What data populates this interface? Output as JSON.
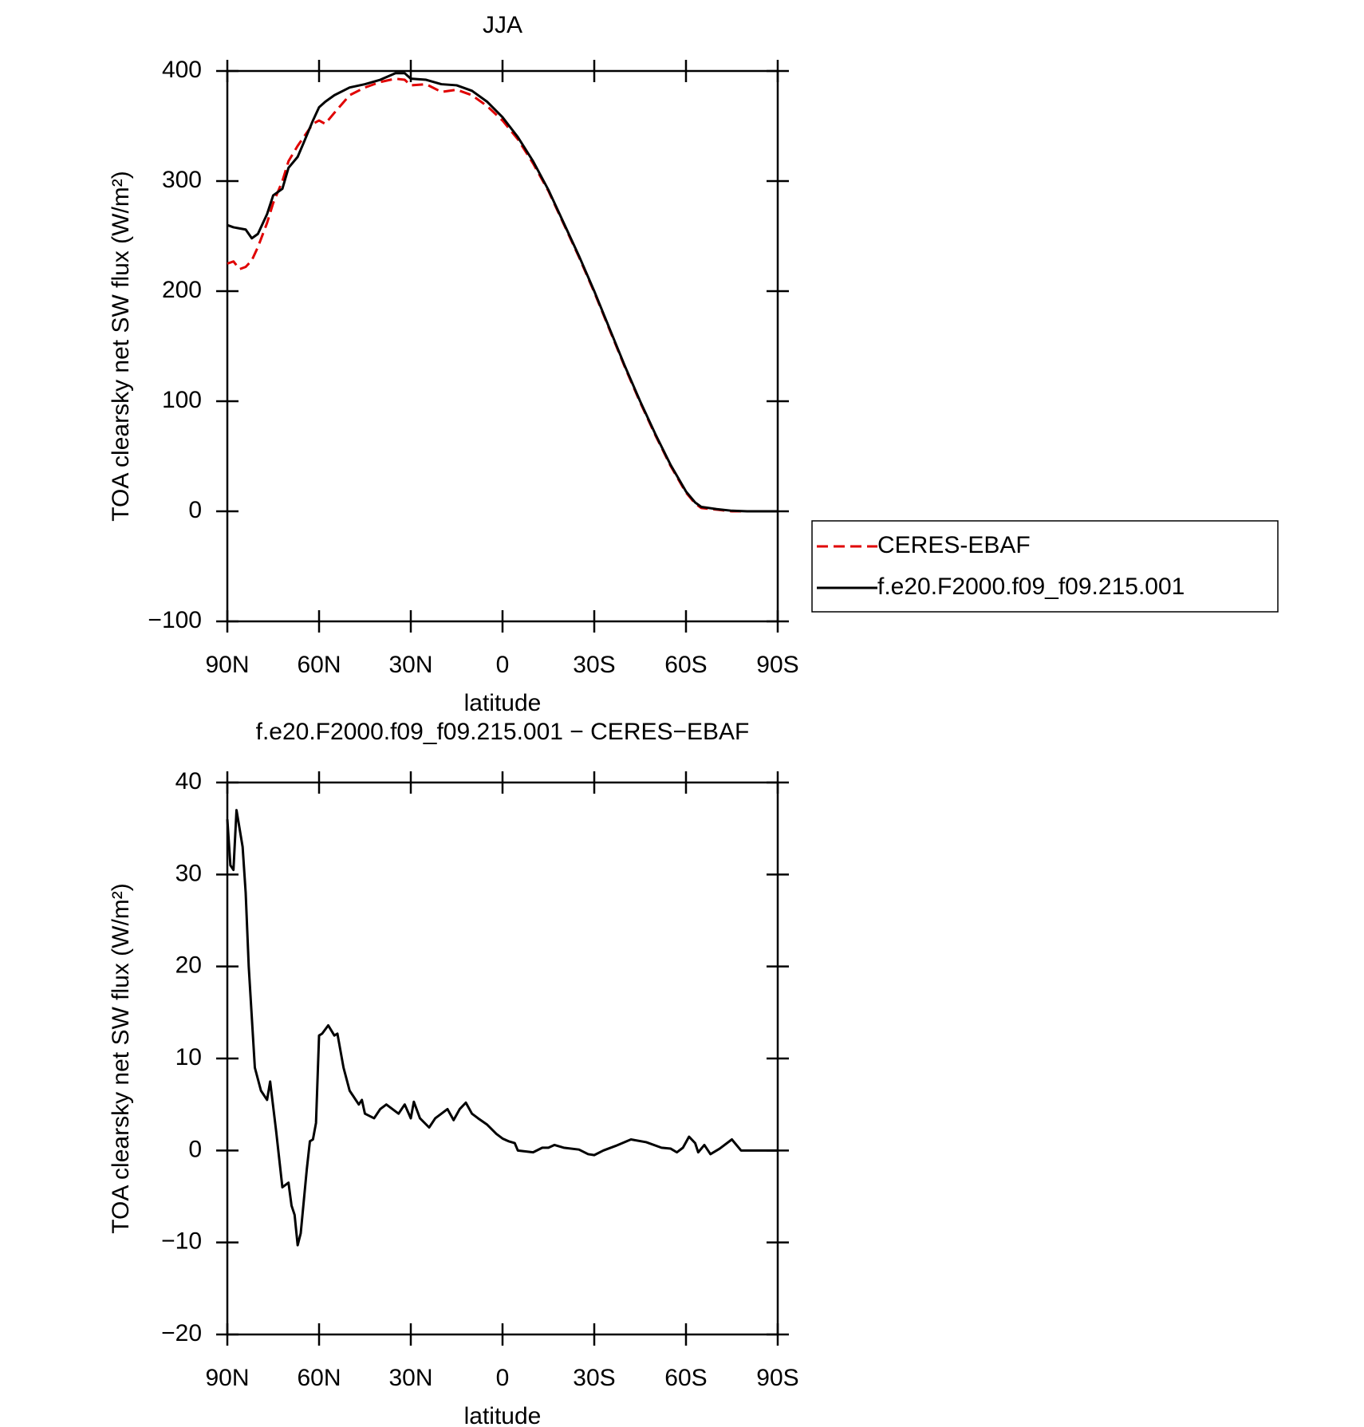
{
  "chart_data": [
    {
      "type": "line",
      "title": "JJA",
      "xlabel": "latitude",
      "ylabel": "TOA clearsky net SW flux (W/m²)",
      "xlim": [
        90,
        -90
      ],
      "xticks": [
        {
          "value": 90,
          "label": "90N"
        },
        {
          "value": 60,
          "label": "60N"
        },
        {
          "value": 30,
          "label": "30N"
        },
        0,
        {
          "value": -30,
          "label": "30S"
        },
        {
          "value": -60,
          "label": "60S"
        },
        {
          "value": -90,
          "label": "90S"
        }
      ],
      "ylim": [
        -100,
        400
      ],
      "yticks": [
        {
          "value": -100,
          "label": "−100"
        },
        0,
        100,
        200,
        300,
        400
      ],
      "legend": "right",
      "x": [
        90,
        88,
        86,
        84,
        82,
        80,
        77,
        75,
        72,
        70,
        67,
        65,
        62,
        60,
        58,
        55,
        50,
        45,
        40,
        35,
        32,
        30,
        25,
        20,
        15,
        10,
        5,
        0,
        -5,
        -10,
        -15,
        -20,
        -25,
        -30,
        -35,
        -40,
        -45,
        -50,
        -55,
        -60,
        -63,
        -65,
        -70,
        -75,
        -80,
        -85,
        -90
      ],
      "series": [
        {
          "name": "CERES-EBAF",
          "color": "#e00000",
          "dash": true,
          "values": [
            225,
            227,
            220,
            222,
            228,
            240,
            262,
            280,
            300,
            318,
            332,
            340,
            352,
            355,
            352,
            362,
            378,
            385,
            390,
            393,
            392,
            387,
            388,
            381,
            383,
            378,
            368,
            355,
            338,
            316,
            291,
            261,
            231,
            199,
            165,
            131,
            99,
            69,
            41,
            17,
            7,
            3,
            1.5,
            0,
            0,
            0,
            0
          ]
        },
        {
          "name": "f.e20.F2000.f09_f09.215.001",
          "color": "#000000",
          "dash": false,
          "values": [
            260,
            258,
            257,
            256,
            248,
            252,
            270,
            287,
            293,
            312,
            322,
            335,
            355,
            367,
            372,
            378,
            385,
            388,
            392,
            398,
            398,
            393,
            392,
            388,
            387,
            382,
            372,
            358,
            340,
            318,
            292,
            262,
            232,
            200,
            166,
            132,
            100,
            70,
            42,
            18,
            8,
            4,
            2,
            0.5,
            0,
            0,
            0
          ]
        }
      ]
    },
    {
      "type": "line",
      "title": "f.e20.F2000.f09_f09.215.001 − CERES−EBAF",
      "xlabel": "latitude",
      "ylabel": "TOA clearsky net SW flux (W/m²)",
      "xlim": [
        90,
        -90
      ],
      "xticks": [
        {
          "value": 90,
          "label": "90N"
        },
        {
          "value": 60,
          "label": "60N"
        },
        {
          "value": 30,
          "label": "30N"
        },
        0,
        {
          "value": -30,
          "label": "30S"
        },
        {
          "value": -60,
          "label": "60S"
        },
        {
          "value": -90,
          "label": "90S"
        }
      ],
      "ylim": [
        -20,
        40
      ],
      "yticks": [
        {
          "value": -20,
          "label": "−20"
        },
        {
          "value": -10,
          "label": "−10"
        },
        0,
        10,
        20,
        30,
        40
      ],
      "x": [
        90,
        89,
        88,
        87,
        85,
        84,
        83,
        81,
        79,
        77,
        76,
        74,
        72,
        70,
        69,
        68,
        67,
        66,
        64,
        63,
        62,
        61,
        60,
        59,
        57,
        55,
        54,
        52,
        50,
        49,
        47,
        46,
        45,
        42,
        40,
        38,
        36,
        34,
        32,
        30,
        29,
        27,
        24,
        22,
        18,
        16,
        14,
        12,
        10,
        8,
        5,
        2,
        0,
        -2,
        -4,
        -5,
        -10,
        -13,
        -15,
        -17,
        -20,
        -25,
        -28,
        -30,
        -33,
        -37,
        -42,
        -47,
        -52,
        -55,
        -57,
        -59,
        -61,
        -63,
        -64,
        -66,
        -68,
        -71,
        -75,
        -78,
        -80,
        -90
      ],
      "series": [
        {
          "name": "f.e20.F2000.f09_f09.215.001 − CERES−EBAF",
          "color": "#000000",
          "dash": false,
          "values": [
            36,
            31,
            30.5,
            37,
            33,
            28,
            20,
            9,
            6.5,
            5.5,
            7.5,
            2,
            -4,
            -3.5,
            -6,
            -7,
            -10.3,
            -9,
            -2,
            1,
            1.2,
            3,
            12.5,
            12.7,
            13.6,
            12.5,
            12.7,
            9,
            6.5,
            6,
            5,
            5.5,
            4,
            3.5,
            4.5,
            5,
            4.5,
            4,
            5,
            3.5,
            5.3,
            3.5,
            2.5,
            3.5,
            4.5,
            3.3,
            4.5,
            5.2,
            4,
            3.5,
            2.8,
            1.8,
            1.3,
            1,
            0.8,
            0,
            -0.2,
            0.3,
            0.3,
            0.6,
            0.3,
            0.1,
            -0.4,
            -0.5,
            0,
            0.5,
            1.2,
            0.9,
            0.3,
            0.2,
            -0.2,
            0.3,
            1.5,
            0.8,
            -0.2,
            0.6,
            -0.4,
            0.2,
            1.2,
            0,
            0,
            0
          ]
        }
      ]
    }
  ]
}
